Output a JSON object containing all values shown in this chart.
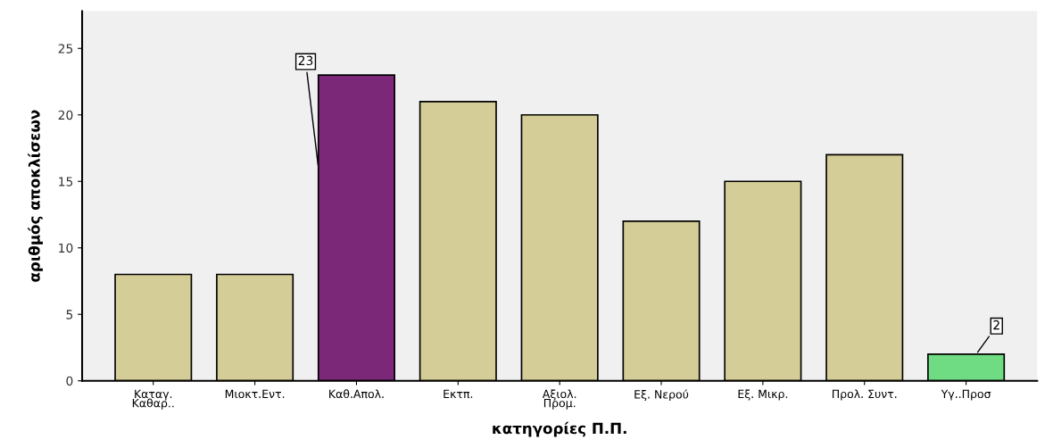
{
  "chart_data": {
    "type": "bar",
    "xlabel": "κατηγορίες Π.Π.",
    "ylabel": "αριθμός αποκλίσεων",
    "categories": [
      "Καταγ.\nΚαθαρ..",
      "Μιοκτ.Εντ.",
      "Καθ.Απολ.",
      "Εκτπ.",
      "Αξιολ.\nΠρομ.",
      "Εξ. Νερού",
      "Εξ. Μικρ.",
      "Προλ. Συντ.",
      "Υγ..Προσ"
    ],
    "values": [
      8,
      8,
      23,
      21,
      20,
      12,
      15,
      17,
      2
    ],
    "colors": [
      "#d4cd97",
      "#d4cd97",
      "#7b2879",
      "#d4cd97",
      "#d4cd97",
      "#d4cd97",
      "#d4cd97",
      "#d4cd97",
      "#6fdc83"
    ],
    "value_labels": [
      null,
      null,
      "23",
      null,
      null,
      null,
      null,
      null,
      "2"
    ],
    "ylim": [
      0,
      27.8
    ],
    "yticks": [
      0,
      5,
      10,
      15,
      20,
      25
    ],
    "grid": false
  }
}
